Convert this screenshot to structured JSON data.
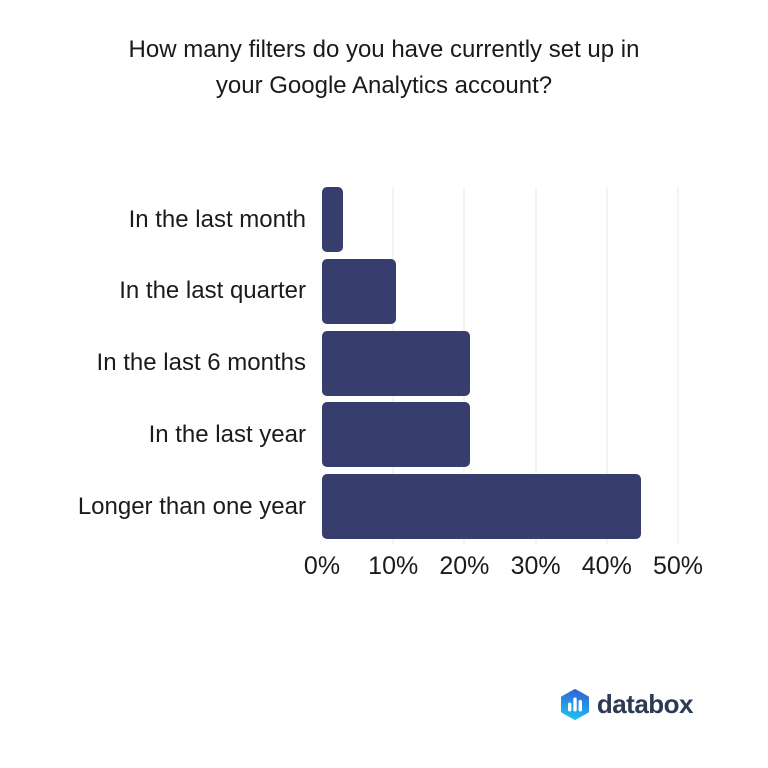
{
  "title_lines": [
    "How many filters do you have currently set up in",
    "your Google Analytics account?"
  ],
  "chart_data": {
    "type": "bar",
    "orientation": "horizontal",
    "title": "How many filters do you have currently set up in your Google Analytics account?",
    "categories": [
      "In the last month",
      "In the last quarter",
      "In the last 6 months",
      "In the last year",
      "Longer than one year"
    ],
    "values": [
      3,
      10.4,
      20.8,
      20.8,
      44.8
    ],
    "x_ticks": [
      "0%",
      "10%",
      "20%",
      "30%",
      "40%",
      "50%"
    ],
    "xlim": [
      0,
      50
    ],
    "xlabel": "",
    "ylabel": "",
    "grid": true,
    "legend": "none",
    "bar_color": "#373d6d",
    "gridline_color": "#e8e8e8"
  },
  "branding": {
    "logo_text": "databox",
    "logo_icon": "bar-chart-hexagon-icon",
    "logo_gradient_top": "#3064d8",
    "logo_gradient_bottom": "#1fc0ee",
    "logo_bar_color": "#ffffff",
    "logo_text_color": "#2d3a53"
  }
}
